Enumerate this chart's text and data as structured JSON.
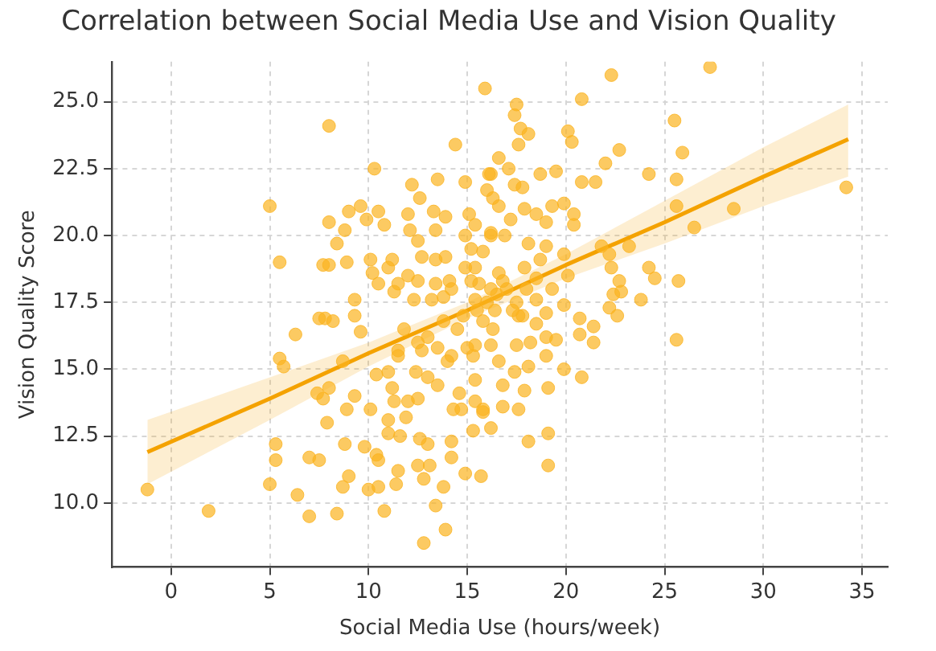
{
  "chart_data": {
    "type": "scatter",
    "title": "Correlation between Social Media Use and Vision Quality",
    "xlabel": "Social Media Use (hours/week)",
    "ylabel": "Vision Quality Score",
    "xlim": [
      -3,
      36.3
    ],
    "ylim": [
      7.6,
      26.5
    ],
    "xticks": [
      0,
      5,
      10,
      15,
      20,
      25,
      30,
      35
    ],
    "yticks": [
      {
        "value": 10,
        "label": "10.0"
      },
      {
        "value": 12.5,
        "label": "12.5"
      },
      {
        "value": 15,
        "label": "15.0"
      },
      {
        "value": 17.5,
        "label": "17.5"
      },
      {
        "value": 20,
        "label": "20.0"
      },
      {
        "value": 22.5,
        "label": "22.5"
      },
      {
        "value": 25,
        "label": "25.0"
      }
    ],
    "grid": true,
    "series": [
      {
        "marker": "circle",
        "color": "#fbb31f",
        "x": [
          -1.2,
          1.9,
          5.0,
          5.5,
          8.0,
          27.3,
          34.2,
          25.6,
          22.3,
          25.5,
          25.9,
          24.2,
          25.6,
          25.6,
          28.5,
          26.5,
          25.7,
          20.8,
          15.9,
          14.4,
          10.3,
          22.7,
          22.0,
          21.5,
          20.8,
          20.3,
          20.1,
          17.5,
          17.4,
          17.7,
          18.1,
          17.6,
          16.6,
          16.2,
          17.1,
          18.7,
          19.5,
          17.4,
          17.8,
          16.3,
          19.3,
          19.9,
          17.9,
          18.5,
          20.4,
          17.2,
          19.0,
          20.4,
          15.4,
          16.2,
          16.9,
          18.1,
          19.0,
          21.8,
          23.2,
          22.2,
          19.9,
          18.7,
          17.9,
          15.4,
          16.6,
          20.1,
          22.3,
          24.2,
          24.5,
          22.7,
          22.4,
          22.8,
          23.8,
          19.9,
          18.5,
          20.7,
          22.2,
          22.6,
          16.4,
          17.6,
          19.0,
          18.5,
          21.4,
          21.4,
          20.7,
          15.4,
          16.2,
          17.5,
          18.2,
          19.0,
          19.5,
          15.3,
          16.6,
          18.1,
          19.0,
          17.4,
          19.9,
          20.8,
          15.4,
          16.8,
          17.9,
          19.1,
          16.8,
          17.6,
          15.8,
          15.3,
          16.2,
          18.1,
          19.1,
          19.1,
          15.7,
          5.3,
          5.3,
          5.0,
          6.4,
          7.0,
          7.5,
          7.0,
          8.4,
          5.5,
          5.7,
          6.3,
          7.8,
          8.2,
          9.3,
          9.6,
          8.0,
          7.4,
          7.7,
          7.9,
          8.7,
          8.9,
          8.8,
          9.0,
          8.7,
          9.3,
          9.8,
          10.1,
          10.0,
          10.5,
          10.4,
          10.5,
          10.8,
          11.4,
          11.5,
          11.0,
          11.6,
          11.0,
          11.9,
          11.2,
          11.3,
          12.0,
          10.4,
          11.0,
          12.6,
          12.5,
          13.1,
          12.8,
          13.4,
          12.8,
          13.9,
          13.8,
          12.5,
          13.0,
          13.5,
          14.2,
          14.2,
          14.3,
          14.7,
          14.9,
          15.8,
          12.4,
          13.0,
          13.5,
          14.2,
          12.7,
          14.6,
          15.4,
          11.5,
          8.0,
          8.4,
          8.8,
          7.7,
          8.0,
          8.9,
          9.0,
          9.6,
          9.9,
          10.5,
          10.8,
          9.3,
          10.2,
          10.1,
          11.2,
          11.0,
          12.0,
          12.2,
          12.1,
          12.6,
          13.5,
          13.3,
          13.9,
          12.5,
          13.4,
          12.7,
          13.4,
          13.9,
          12.0,
          12.5,
          13.4,
          14.1,
          11.5,
          10.5,
          11.3,
          12.3,
          13.2,
          13.8,
          14.9,
          15.1,
          14.9,
          15.2,
          14.9,
          15.8,
          16.2,
          16.1,
          16.0,
          16.6,
          15.6,
          15.4,
          7.5,
          16.5,
          17.0,
          17.5,
          16.0,
          15.5,
          16.8,
          17.3,
          15.8,
          16.3,
          14.8,
          14.5,
          13.8,
          13.0,
          12.5,
          11.8,
          11.5,
          14.0,
          15.0,
          18.0,
          18.5,
          19.3,
          17.8,
          16.2,
          15.2,
          14.2
        ],
        "values": [
          10.5,
          9.7,
          21.1,
          19.0,
          24.1,
          26.3,
          21.8,
          16.1,
          26.0,
          24.3,
          23.1,
          22.3,
          22.1,
          21.1,
          21.0,
          20.3,
          18.3,
          25.1,
          25.5,
          23.4,
          22.5,
          23.2,
          22.7,
          22.0,
          22.0,
          23.5,
          23.9,
          24.9,
          24.5,
          24.0,
          23.8,
          23.4,
          22.9,
          22.3,
          22.5,
          22.3,
          22.4,
          21.9,
          21.8,
          21.4,
          21.1,
          21.2,
          21.0,
          20.8,
          20.8,
          20.6,
          20.5,
          20.4,
          20.4,
          20.0,
          20.0,
          19.7,
          19.6,
          19.6,
          19.6,
          19.3,
          19.3,
          19.1,
          18.8,
          18.8,
          18.6,
          18.5,
          18.8,
          18.8,
          18.4,
          18.3,
          17.8,
          17.9,
          17.6,
          17.4,
          17.6,
          16.9,
          17.3,
          17.0,
          17.2,
          17.0,
          17.1,
          16.7,
          16.6,
          16.0,
          16.3,
          15.9,
          15.9,
          15.9,
          16.0,
          16.2,
          16.1,
          15.5,
          15.3,
          15.1,
          15.5,
          14.9,
          15.0,
          14.7,
          14.6,
          14.4,
          14.2,
          14.3,
          13.6,
          13.5,
          13.4,
          12.7,
          12.8,
          12.3,
          12.6,
          11.4,
          11.0,
          12.2,
          11.6,
          10.7,
          10.3,
          11.7,
          11.6,
          9.5,
          9.6,
          15.4,
          15.1,
          16.3,
          16.9,
          16.8,
          17.0,
          16.4,
          14.3,
          14.1,
          13.9,
          13.0,
          15.3,
          13.5,
          12.2,
          11.0,
          10.6,
          14.0,
          12.1,
          13.5,
          10.5,
          10.6,
          11.8,
          11.6,
          9.7,
          10.7,
          11.2,
          12.6,
          12.5,
          13.1,
          13.2,
          14.3,
          13.8,
          13.8,
          14.8,
          14.9,
          12.4,
          11.4,
          11.4,
          10.9,
          9.9,
          8.5,
          9.0,
          10.6,
          13.9,
          12.2,
          14.4,
          12.3,
          11.7,
          13.5,
          13.5,
          11.1,
          13.5,
          14.9,
          14.7,
          15.8,
          15.5,
          15.7,
          14.1,
          13.8,
          15.7,
          20.5,
          19.7,
          20.2,
          18.9,
          18.9,
          19.0,
          20.9,
          21.1,
          20.6,
          20.9,
          20.4,
          17.6,
          18.6,
          19.1,
          19.1,
          18.8,
          20.8,
          21.9,
          20.2,
          21.4,
          22.1,
          20.9,
          20.7,
          19.8,
          20.2,
          19.2,
          19.1,
          19.2,
          18.5,
          18.3,
          18.2,
          18.3,
          18.2,
          18.2,
          17.9,
          17.6,
          17.6,
          17.7,
          22.0,
          20.8,
          20.0,
          19.5,
          18.8,
          19.4,
          20.1,
          22.3,
          21.7,
          21.1,
          18.2,
          17.6,
          16.9,
          17.8,
          18.0,
          17.5,
          17.5,
          17.2,
          18.3,
          17.2,
          16.8,
          16.5,
          17.0,
          16.5,
          16.8,
          16.2,
          16.0,
          16.5,
          15.5,
          15.3,
          15.8,
          18.0,
          18.4,
          18.0,
          17.0,
          18.0,
          18.3,
          18.0
        ]
      },
      {
        "type": "line",
        "color": "#f5a300",
        "x": [
          -1.2,
          5,
          10,
          15,
          20,
          25,
          30,
          34.3
        ],
        "values": [
          11.9,
          13.9,
          15.6,
          17.2,
          18.9,
          20.5,
          22.2,
          23.6
        ],
        "lower": [
          10.7,
          13.1,
          15.1,
          16.9,
          18.4,
          19.7,
          21.1,
          22.2
        ],
        "upper": [
          13.1,
          14.7,
          16.0,
          17.5,
          19.3,
          21.3,
          23.3,
          24.9
        ]
      }
    ]
  }
}
